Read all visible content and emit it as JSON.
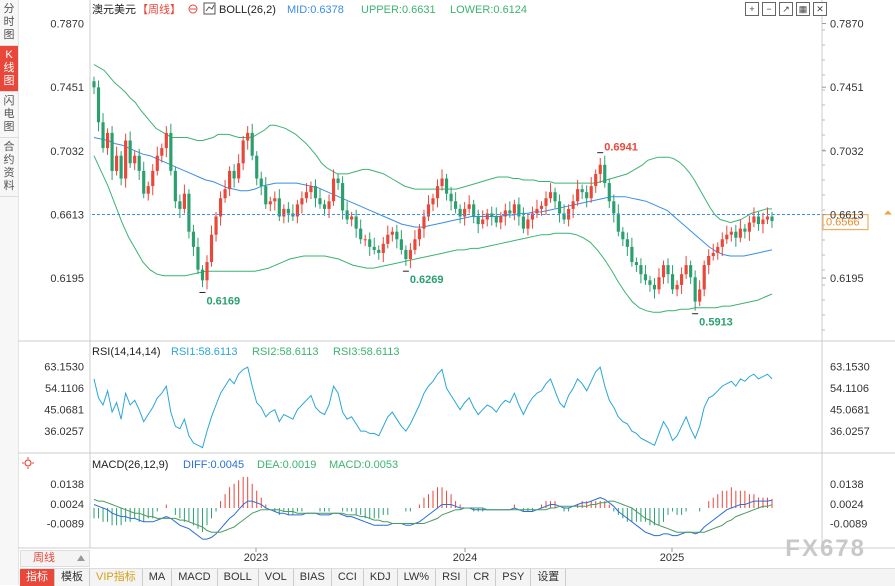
{
  "side_tabs": [
    {
      "label": [
        "分",
        "时",
        "图"
      ],
      "active": false
    },
    {
      "label": [
        "K",
        "线",
        "图"
      ],
      "active": true
    },
    {
      "label": [
        "闪",
        "电",
        "图"
      ],
      "active": false
    },
    {
      "label": [
        "合",
        "约",
        "资",
        "料"
      ],
      "active": false
    }
  ],
  "header": {
    "symbol": "澳元美元",
    "period_tag": "【周线】",
    "indicator_label": "BOLL(26,2)",
    "mid": "MID:0.6378",
    "upper": "UPPER:0.6631",
    "lower": "LOWER:0.6124"
  },
  "rsi_header": {
    "label": "RSI(14,14,14)",
    "rsi1": "RSI1:58.6113",
    "rsi2": "RSI2:58.6113",
    "rsi3": "RSI3:58.6113"
  },
  "macd_header": {
    "label": "MACD(26,12,9)",
    "diff": "DIFF:0.0045",
    "dea": "DEA:0.0019",
    "macd": "MACD:0.0053"
  },
  "current_price": "0.6566",
  "period_button": "周线",
  "watermark": "FX678",
  "toolbar": [
    "指标",
    "模板",
    "VIP指标",
    "MA",
    "MACD",
    "BOLL",
    "VOL",
    "BIAS",
    "CCI",
    "KDJ",
    "LW%",
    "RSI",
    "CR",
    "PSY",
    "设置"
  ],
  "top_icons": [
    "plus-box-icon",
    "minus-box-icon",
    "arrow-box-icon",
    "grid-box-icon",
    "close-box-icon"
  ],
  "colors": {
    "up": "#e8473a",
    "down": "#2aa06f",
    "boll_mid": "#3a8ee6",
    "boll_band": "#3cb371",
    "rsi": "#2aa6d8",
    "diff": "#2b6fd8",
    "dea": "#4c9b62",
    "price_line": "#3a8ee6"
  },
  "chart_data": [
    {
      "type": "candlestick",
      "title": "澳元美元【周线】",
      "y_ticks": [
        "0.7870",
        "0.7451",
        "0.7032",
        "0.6613",
        "0.6195"
      ],
      "ylim": [
        0.582,
        0.788
      ],
      "x_labels": [
        "2023",
        "2024",
        "2025"
      ],
      "annotations": [
        {
          "label": "0.6169",
          "kind": "low"
        },
        {
          "label": "0.6269",
          "kind": "low"
        },
        {
          "label": "0.6941",
          "kind": "high"
        },
        {
          "label": "0.5913",
          "kind": "low"
        }
      ],
      "close": [
        0.745,
        0.722,
        0.705,
        0.715,
        0.69,
        0.7,
        0.685,
        0.71,
        0.695,
        0.7,
        0.69,
        0.675,
        0.68,
        0.69,
        0.7,
        0.705,
        0.715,
        0.69,
        0.67,
        0.665,
        0.675,
        0.65,
        0.64,
        0.625,
        0.618,
        0.63,
        0.648,
        0.66,
        0.672,
        0.678,
        0.69,
        0.685,
        0.695,
        0.71,
        0.715,
        0.7,
        0.685,
        0.68,
        0.668,
        0.67,
        0.672,
        0.66,
        0.665,
        0.662,
        0.66,
        0.668,
        0.672,
        0.676,
        0.68,
        0.672,
        0.668,
        0.665,
        0.67,
        0.685,
        0.682,
        0.664,
        0.658,
        0.66,
        0.652,
        0.645,
        0.645,
        0.64,
        0.638,
        0.636,
        0.642,
        0.648,
        0.65,
        0.645,
        0.638,
        0.632,
        0.638,
        0.645,
        0.652,
        0.66,
        0.668,
        0.672,
        0.68,
        0.685,
        0.675,
        0.67,
        0.665,
        0.66,
        0.665,
        0.668,
        0.66,
        0.655,
        0.658,
        0.662,
        0.66,
        0.656,
        0.66,
        0.664,
        0.662,
        0.668,
        0.66,
        0.652,
        0.658,
        0.662,
        0.665,
        0.667,
        0.672,
        0.676,
        0.67,
        0.662,
        0.658,
        0.665,
        0.67,
        0.678,
        0.676,
        0.672,
        0.68,
        0.688,
        0.694,
        0.682,
        0.67,
        0.662,
        0.65,
        0.645,
        0.64,
        0.63,
        0.628,
        0.622,
        0.618,
        0.615,
        0.612,
        0.62,
        0.628,
        0.622,
        0.612,
        0.615,
        0.622,
        0.628,
        0.62,
        0.604,
        0.612,
        0.628,
        0.634,
        0.636,
        0.64,
        0.645,
        0.648,
        0.65,
        0.646,
        0.652,
        0.65,
        0.656,
        0.66,
        0.655,
        0.658,
        0.66,
        0.657
      ],
      "boll_upper": [
        0.76,
        0.758,
        0.756,
        0.752,
        0.748,
        0.745,
        0.742,
        0.738,
        0.735,
        0.73,
        0.726,
        0.722,
        0.718,
        0.716,
        0.714,
        0.712,
        0.712,
        0.712,
        0.712,
        0.711,
        0.71,
        0.71,
        0.711,
        0.712,
        0.714,
        0.714,
        0.714,
        0.713,
        0.712,
        0.712,
        0.712,
        0.713,
        0.715,
        0.717,
        0.72,
        0.72,
        0.719,
        0.718,
        0.716,
        0.714,
        0.711,
        0.708,
        0.704,
        0.7,
        0.695,
        0.692,
        0.69,
        0.688,
        0.688,
        0.688,
        0.689,
        0.69,
        0.691,
        0.691,
        0.69,
        0.689,
        0.688,
        0.686,
        0.684,
        0.682,
        0.68,
        0.679,
        0.678,
        0.678,
        0.678,
        0.678,
        0.678,
        0.678,
        0.678,
        0.678,
        0.678,
        0.679,
        0.68,
        0.681,
        0.682,
        0.683,
        0.684,
        0.685,
        0.686,
        0.686,
        0.686,
        0.685,
        0.685,
        0.684,
        0.684,
        0.684,
        0.683,
        0.683,
        0.683,
        0.682,
        0.682,
        0.682,
        0.682,
        0.682,
        0.682,
        0.682,
        0.682,
        0.682,
        0.683,
        0.684,
        0.685,
        0.686,
        0.687,
        0.688,
        0.69,
        0.692,
        0.694,
        0.697,
        0.698,
        0.699,
        0.699,
        0.699,
        0.698,
        0.696,
        0.693,
        0.689,
        0.684,
        0.678,
        0.672,
        0.666,
        0.661,
        0.658,
        0.657,
        0.656,
        0.657,
        0.658,
        0.66,
        0.662,
        0.663,
        0.664,
        0.665,
        0.665
      ],
      "boll_mid": [
        0.712,
        0.711,
        0.71,
        0.708,
        0.707,
        0.705,
        0.703,
        0.701,
        0.7,
        0.698,
        0.696,
        0.694,
        0.692,
        0.69,
        0.688,
        0.686,
        0.684,
        0.683,
        0.681,
        0.679,
        0.678,
        0.677,
        0.677,
        0.678,
        0.68,
        0.681,
        0.682,
        0.682,
        0.682,
        0.682,
        0.681,
        0.68,
        0.679,
        0.677,
        0.675,
        0.673,
        0.671,
        0.669,
        0.667,
        0.665,
        0.663,
        0.661,
        0.659,
        0.657,
        0.655,
        0.654,
        0.653,
        0.653,
        0.654,
        0.655,
        0.656,
        0.657,
        0.658,
        0.659,
        0.66,
        0.66,
        0.66,
        0.66,
        0.66,
        0.661,
        0.661,
        0.662,
        0.662,
        0.663,
        0.663,
        0.664,
        0.665,
        0.666,
        0.667,
        0.668,
        0.669,
        0.67,
        0.671,
        0.672,
        0.673,
        0.673,
        0.673,
        0.672,
        0.671,
        0.67,
        0.668,
        0.666,
        0.664,
        0.66,
        0.656,
        0.652,
        0.648,
        0.644,
        0.64,
        0.637,
        0.635,
        0.634,
        0.634,
        0.634,
        0.635,
        0.636,
        0.637,
        0.638
      ],
      "boll_lower": [
        0.7,
        0.69,
        0.68,
        0.668,
        0.656,
        0.646,
        0.638,
        0.63,
        0.625,
        0.622,
        0.621,
        0.621,
        0.621,
        0.621,
        0.622,
        0.623,
        0.624,
        0.624,
        0.624,
        0.624,
        0.624,
        0.624,
        0.624,
        0.624,
        0.625,
        0.626,
        0.628,
        0.63,
        0.632,
        0.633,
        0.634,
        0.634,
        0.634,
        0.634,
        0.633,
        0.632,
        0.63,
        0.628,
        0.627,
        0.626,
        0.626,
        0.627,
        0.628,
        0.629,
        0.63,
        0.631,
        0.632,
        0.633,
        0.634,
        0.635,
        0.636,
        0.637,
        0.638,
        0.638,
        0.639,
        0.639,
        0.64,
        0.641,
        0.642,
        0.643,
        0.644,
        0.645,
        0.646,
        0.647,
        0.648,
        0.648,
        0.649,
        0.649,
        0.649,
        0.648,
        0.646,
        0.643,
        0.638,
        0.632,
        0.625,
        0.617,
        0.61,
        0.604,
        0.6,
        0.598,
        0.597,
        0.597,
        0.598,
        0.598,
        0.599,
        0.599,
        0.6,
        0.6,
        0.6,
        0.6,
        0.601,
        0.601,
        0.602,
        0.603,
        0.604,
        0.605,
        0.607,
        0.609
      ]
    },
    {
      "type": "line",
      "title": "RSI(14,14,14)",
      "y_ticks": [
        "63.1530",
        "54.1106",
        "45.0681",
        "36.0257"
      ],
      "ylim": [
        28,
        66
      ],
      "values": [
        58,
        50,
        47,
        53,
        44,
        48,
        41,
        52,
        47,
        49,
        45,
        40,
        43,
        46,
        50,
        52,
        55,
        44,
        38,
        37,
        41,
        34,
        31,
        30,
        29,
        36,
        42,
        47,
        52,
        55,
        58,
        56,
        60,
        62,
        63,
        55,
        48,
        46,
        42,
        44,
        45,
        40,
        43,
        42,
        41,
        45,
        47,
        49,
        51,
        46,
        44,
        43,
        47,
        55,
        52,
        44,
        41,
        42,
        39,
        36,
        36,
        35,
        35,
        34,
        38,
        42,
        44,
        41,
        38,
        36,
        39,
        43,
        47,
        52,
        55,
        57,
        60,
        62,
        54,
        51,
        48,
        45,
        48,
        50,
        46,
        43,
        45,
        47,
        46,
        44,
        47,
        49,
        48,
        52,
        47,
        43,
        47,
        50,
        52,
        53,
        56,
        58,
        53,
        48,
        46,
        51,
        54,
        58,
        56,
        53,
        57,
        61,
        63,
        55,
        49,
        46,
        42,
        40,
        39,
        36,
        35,
        33,
        32,
        31,
        30,
        35,
        40,
        37,
        32,
        34,
        38,
        42,
        37,
        33,
        38,
        46,
        50,
        51,
        53,
        55,
        56,
        57,
        55,
        58,
        57,
        59,
        60,
        58,
        59,
        60,
        58
      ]
    },
    {
      "type": "bar+line",
      "title": "MACD(26,12,9)",
      "y_ticks": [
        "0.0138",
        "0.0024",
        "-0.0089"
      ],
      "ylim": [
        -0.022,
        0.022
      ],
      "diff": [
        0.002,
        0.001,
        0.0,
        -0.001,
        -0.003,
        -0.004,
        -0.005,
        -0.005,
        -0.006,
        -0.006,
        -0.007,
        -0.008,
        -0.008,
        -0.008,
        -0.007,
        -0.006,
        -0.005,
        -0.006,
        -0.008,
        -0.01,
        -0.011,
        -0.012,
        -0.014,
        -0.016,
        -0.018,
        -0.018,
        -0.017,
        -0.015,
        -0.012,
        -0.009,
        -0.006,
        -0.004,
        -0.001,
        0.002,
        0.004,
        0.004,
        0.003,
        0.002,
        0.0,
        -0.001,
        -0.002,
        -0.003,
        -0.003,
        -0.004,
        -0.004,
        -0.004,
        -0.004,
        -0.003,
        -0.003,
        -0.003,
        -0.004,
        -0.004,
        -0.004,
        -0.003,
        -0.003,
        -0.004,
        -0.005,
        -0.005,
        -0.006,
        -0.007,
        -0.008,
        -0.009,
        -0.01,
        -0.01,
        -0.01,
        -0.01,
        -0.009,
        -0.009,
        -0.009,
        -0.01,
        -0.01,
        -0.009,
        -0.008,
        -0.006,
        -0.004,
        -0.002,
        0.0,
        0.002,
        0.002,
        0.002,
        0.001,
        0.0,
        0.0,
        0.0,
        -0.001,
        -0.001,
        -0.001,
        -0.001,
        -0.001,
        -0.001,
        -0.001,
        -0.001,
        -0.001,
        0.0,
        -0.001,
        -0.002,
        -0.002,
        -0.002,
        -0.001,
        0.0,
        0.001,
        0.002,
        0.002,
        0.001,
        0.0,
        0.0,
        0.001,
        0.002,
        0.003,
        0.003,
        0.004,
        0.005,
        0.006,
        0.005,
        0.003,
        0.001,
        -0.002,
        -0.004,
        -0.006,
        -0.008,
        -0.01,
        -0.012,
        -0.014,
        -0.015,
        -0.016,
        -0.016,
        -0.015,
        -0.015,
        -0.016,
        -0.016,
        -0.015,
        -0.014,
        -0.014,
        -0.015,
        -0.014,
        -0.011,
        -0.009,
        -0.007,
        -0.005,
        -0.003,
        -0.001,
        0.0,
        0.001,
        0.002,
        0.002,
        0.003,
        0.004,
        0.004,
        0.004,
        0.004,
        0.0045
      ],
      "dea": [
        0.005,
        0.004,
        0.004,
        0.003,
        0.002,
        0.001,
        0.0,
        -0.001,
        -0.002,
        -0.003,
        -0.003,
        -0.004,
        -0.005,
        -0.005,
        -0.006,
        -0.006,
        -0.006,
        -0.006,
        -0.006,
        -0.007,
        -0.007,
        -0.008,
        -0.009,
        -0.01,
        -0.011,
        -0.013,
        -0.014,
        -0.014,
        -0.014,
        -0.013,
        -0.012,
        -0.011,
        -0.009,
        -0.007,
        -0.005,
        -0.003,
        -0.002,
        -0.001,
        -0.001,
        -0.001,
        -0.001,
        -0.001,
        -0.002,
        -0.002,
        -0.002,
        -0.003,
        -0.003,
        -0.003,
        -0.003,
        -0.003,
        -0.003,
        -0.003,
        -0.003,
        -0.003,
        -0.003,
        -0.003,
        -0.004,
        -0.004,
        -0.004,
        -0.005,
        -0.005,
        -0.006,
        -0.007,
        -0.007,
        -0.008,
        -0.008,
        -0.009,
        -0.009,
        -0.009,
        -0.009,
        -0.009,
        -0.009,
        -0.009,
        -0.009,
        -0.008,
        -0.007,
        -0.006,
        -0.004,
        -0.003,
        -0.002,
        -0.001,
        -0.001,
        0.0,
        0.0,
        0.0,
        0.0,
        0.0,
        -0.001,
        -0.001,
        -0.001,
        -0.001,
        -0.001,
        -0.001,
        -0.001,
        -0.001,
        -0.001,
        -0.001,
        -0.001,
        -0.001,
        -0.001,
        -0.001,
        0.0,
        0.0,
        0.001,
        0.001,
        0.001,
        0.001,
        0.001,
        0.001,
        0.001,
        0.002,
        0.002,
        0.003,
        0.003,
        0.004,
        0.004,
        0.003,
        0.002,
        0.001,
        0.0,
        -0.002,
        -0.004,
        -0.006,
        -0.007,
        -0.009,
        -0.01,
        -0.011,
        -0.012,
        -0.013,
        -0.014,
        -0.014,
        -0.014,
        -0.014,
        -0.014,
        -0.014,
        -0.014,
        -0.013,
        -0.012,
        -0.011,
        -0.01,
        -0.008,
        -0.007,
        -0.005,
        -0.004,
        -0.003,
        -0.002,
        -0.001,
        0.0,
        0.001,
        0.001,
        0.0019
      ],
      "macd_bars": [
        -0.006,
        -0.006,
        -0.008,
        -0.008,
        -0.01,
        -0.01,
        -0.01,
        -0.008,
        -0.008,
        -0.006,
        -0.008,
        -0.008,
        -0.006,
        -0.006,
        -0.002,
        0.0,
        0.002,
        0.0,
        -0.004,
        -0.006,
        -0.008,
        -0.008,
        -0.01,
        -0.012,
        -0.014,
        -0.01,
        -0.006,
        -0.002,
        0.004,
        0.008,
        0.012,
        0.014,
        0.016,
        0.018,
        0.018,
        0.014,
        0.01,
        0.006,
        0.002,
        0.0,
        -0.002,
        -0.004,
        -0.002,
        -0.004,
        -0.004,
        -0.002,
        -0.002,
        0.0,
        0.0,
        0.0,
        -0.002,
        -0.002,
        -0.002,
        0.0,
        0.0,
        -0.002,
        -0.002,
        -0.002,
        -0.004,
        -0.004,
        -0.006,
        -0.006,
        -0.006,
        -0.006,
        -0.004,
        -0.004,
        0.0,
        0.0,
        0.0,
        -0.002,
        -0.002,
        0.0,
        0.002,
        0.006,
        0.008,
        0.01,
        0.012,
        0.012,
        0.01,
        0.008,
        0.004,
        0.002,
        0.0,
        0.0,
        -0.002,
        -0.002,
        -0.002,
        0.0,
        0.0,
        0.0,
        0.0,
        0.0,
        0.0,
        0.002,
        0.0,
        -0.002,
        -0.002,
        -0.002,
        0.0,
        0.002,
        0.004,
        0.004,
        0.004,
        0.0,
        -0.002,
        -0.002,
        0.0,
        0.002,
        0.004,
        0.004,
        0.004,
        0.004,
        0.004,
        0.004,
        0.002,
        -0.002,
        -0.004,
        -0.006,
        -0.008,
        -0.008,
        -0.008,
        -0.008,
        -0.008,
        -0.01,
        -0.01,
        -0.01,
        -0.008,
        -0.004,
        -0.002,
        -0.004,
        -0.004,
        -0.002,
        0.0,
        0.0,
        -0.002,
        0.0,
        0.004,
        0.006,
        0.008,
        0.01,
        0.01,
        0.012,
        0.01,
        0.01,
        0.01,
        0.008,
        0.008,
        0.006,
        0.006,
        0.006,
        0.0053
      ]
    }
  ]
}
